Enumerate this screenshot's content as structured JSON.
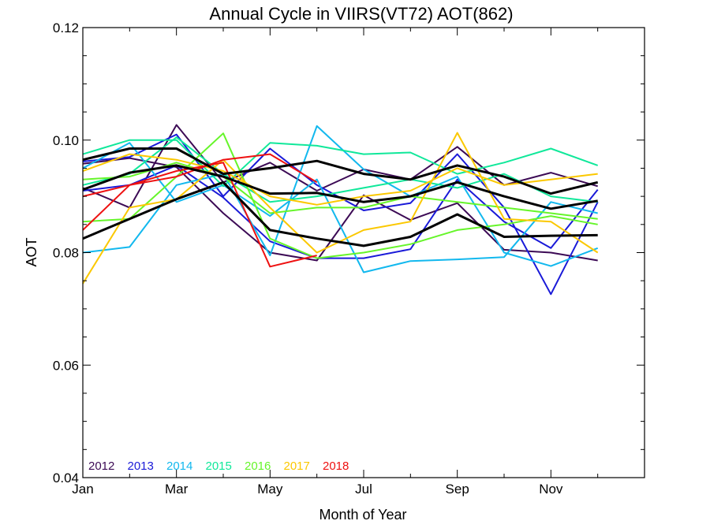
{
  "chart_data": {
    "type": "line",
    "title": "Annual Cycle in VIIRS(VT72) AOT(862)",
    "xlabel": "Month of Year",
    "ylabel": "AOT",
    "xlim": [
      1,
      13
    ],
    "ylim": [
      0.04,
      0.12
    ],
    "x_ticks": [
      {
        "value": 1,
        "label": "Jan"
      },
      {
        "value": 3,
        "label": "Mar"
      },
      {
        "value": 5,
        "label": "May"
      },
      {
        "value": 7,
        "label": "Jul"
      },
      {
        "value": 9,
        "label": "Sep"
      },
      {
        "value": 11,
        "label": "Nov"
      }
    ],
    "y_ticks": [
      {
        "value": 0.04,
        "label": "0.04"
      },
      {
        "value": 0.06,
        "label": "0.06"
      },
      {
        "value": 0.08,
        "label": "0.08"
      },
      {
        "value": 0.1,
        "label": "0.10"
      },
      {
        "value": 0.12,
        "label": "0.12"
      }
    ],
    "grid": false,
    "legend_position": "bottom-left",
    "x": [
      1,
      2,
      3,
      4,
      5,
      6,
      7,
      8,
      9,
      10,
      11,
      12
    ],
    "series": [
      {
        "name": "2012",
        "color": "#3c0a55",
        "width": 2,
        "values": [
          0.0915,
          0.088,
          0.1027,
          0.0925,
          0.096,
          0.091,
          0.0948,
          0.093,
          0.0988,
          0.092,
          0.0942,
          0.0918
        ]
      },
      {
        "name": "2012",
        "color": "#3c0a55",
        "width": 2,
        "values": [
          0.0958,
          0.0968,
          0.0952,
          0.087,
          0.08,
          0.0786,
          0.0902,
          0.0858,
          0.0888,
          0.0805,
          0.08,
          0.0786
        ]
      },
      {
        "name": "2013",
        "color": "#1a1ad8",
        "width": 2,
        "values": [
          0.0962,
          0.097,
          0.101,
          0.09,
          0.0985,
          0.092,
          0.0875,
          0.0888,
          0.0975,
          0.088,
          0.0726,
          0.089
        ]
      },
      {
        "name": "2013",
        "color": "#1a1ad8",
        "width": 2,
        "values": [
          0.091,
          0.092,
          0.0955,
          0.0898,
          0.082,
          0.079,
          0.079,
          0.0806,
          0.093,
          0.0855,
          0.0808,
          0.0912
        ]
      },
      {
        "name": "2014",
        "color": "#12b8ee",
        "width": 2,
        "values": [
          0.08,
          0.081,
          0.092,
          0.094,
          0.0795,
          0.1025,
          0.0948,
          0.09,
          0.0935,
          0.08,
          0.0776,
          0.0808
        ]
      },
      {
        "name": "2014",
        "color": "#12b8ee",
        "width": 2,
        "values": [
          0.095,
          0.0995,
          0.089,
          0.092,
          0.0865,
          0.093,
          0.0765,
          0.0785,
          0.0788,
          0.0792,
          0.089,
          0.087
        ]
      },
      {
        "name": "2015",
        "color": "#10e89a",
        "width": 2,
        "values": [
          0.0975,
          0.1,
          0.1,
          0.0918,
          0.0995,
          0.099,
          0.0975,
          0.0978,
          0.094,
          0.096,
          0.0985,
          0.0955
        ]
      },
      {
        "name": "2015",
        "color": "#10e89a",
        "width": 2,
        "values": [
          0.092,
          0.094,
          0.1005,
          0.094,
          0.089,
          0.09,
          0.0915,
          0.093,
          0.0915,
          0.094,
          0.09,
          0.089
        ]
      },
      {
        "name": "2016",
        "color": "#66f52a",
        "width": 2,
        "values": [
          0.0855,
          0.086,
          0.0935,
          0.1012,
          0.0825,
          0.079,
          0.08,
          0.0815,
          0.084,
          0.085,
          0.0865,
          0.085
        ]
      },
      {
        "name": "2016",
        "color": "#66f52a",
        "width": 2,
        "values": [
          0.093,
          0.0935,
          0.096,
          0.0935,
          0.087,
          0.088,
          0.088,
          0.09,
          0.089,
          0.088,
          0.087,
          0.086
        ]
      },
      {
        "name": "2017",
        "color": "#fbc800",
        "width": 2,
        "values": [
          0.0745,
          0.088,
          0.0895,
          0.0965,
          0.088,
          0.08,
          0.084,
          0.0855,
          0.1013,
          0.086,
          0.0855,
          0.08
        ]
      },
      {
        "name": "2017",
        "color": "#fbc800",
        "width": 2,
        "values": [
          0.0945,
          0.0975,
          0.0965,
          0.0945,
          0.09,
          0.0885,
          0.09,
          0.091,
          0.095,
          0.092,
          0.093,
          0.094
        ]
      },
      {
        "name": "2018",
        "color": "#ee1111",
        "width": 2,
        "values": [
          0.084,
          0.092,
          0.0945,
          0.096,
          0.0775,
          0.0795,
          null,
          null,
          null,
          null,
          null,
          null
        ]
      },
      {
        "name": "2018",
        "color": "#ee1111",
        "width": 2,
        "values": [
          0.09,
          0.092,
          0.0935,
          0.0965,
          0.0975,
          0.0925,
          null,
          null,
          null,
          null,
          null,
          null
        ]
      },
      {
        "name": "",
        "color": "#000000",
        "width": 3,
        "values": [
          0.0965,
          0.0985,
          0.0985,
          0.094,
          0.095,
          0.0963,
          0.094,
          0.093,
          0.0955,
          0.0935,
          0.0905,
          0.0925
        ]
      },
      {
        "name": "",
        "color": "#000000",
        "width": 3,
        "values": [
          0.0912,
          0.0942,
          0.0955,
          0.0935,
          0.0905,
          0.0906,
          0.089,
          0.09,
          0.0925,
          0.09,
          0.0878,
          0.0892
        ]
      },
      {
        "name": "",
        "color": "#000000",
        "width": 3,
        "values": [
          0.0825,
          0.086,
          0.0895,
          0.0925,
          0.084,
          0.0825,
          0.0812,
          0.0828,
          0.0868,
          0.0828,
          0.083,
          0.0831
        ]
      }
    ],
    "legend": [
      {
        "label": "2012",
        "color": "#3c0a55"
      },
      {
        "label": "2013",
        "color": "#1a1ad8"
      },
      {
        "label": "2014",
        "color": "#12b8ee"
      },
      {
        "label": "2015",
        "color": "#10e89a"
      },
      {
        "label": "2016",
        "color": "#66f52a"
      },
      {
        "label": "2017",
        "color": "#fbc800"
      },
      {
        "label": "2018",
        "color": "#ee1111"
      }
    ]
  }
}
